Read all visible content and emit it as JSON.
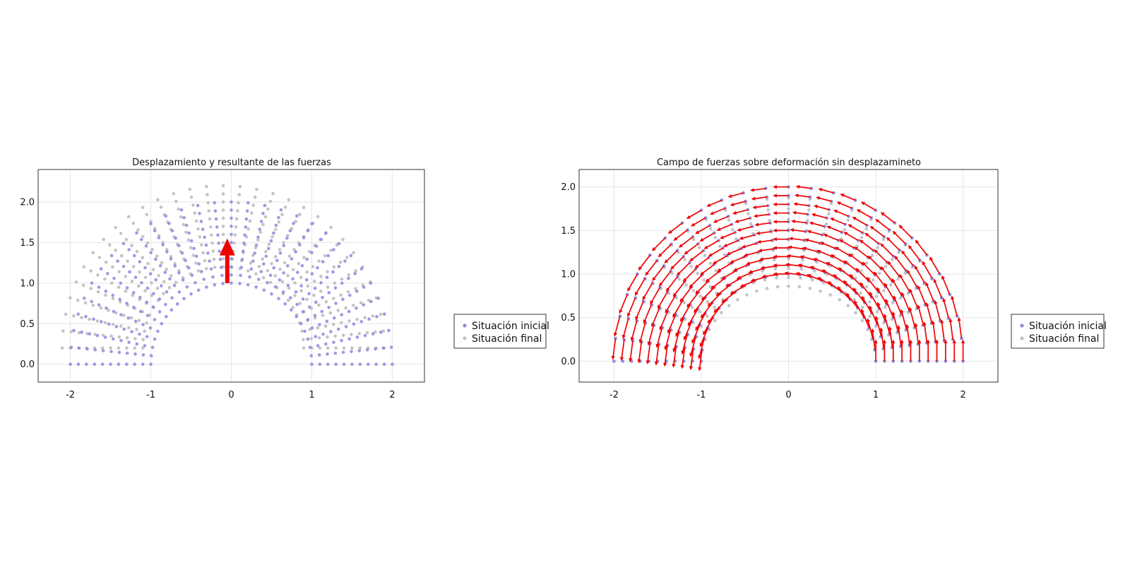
{
  "colors": {
    "initial": "#8a8ae0",
    "final": "#c4c4c4",
    "arrow": "#f00000",
    "frame": "#333333",
    "grid": "#e6e6e6"
  },
  "chart_data": [
    {
      "type": "scatter",
      "title": "Desplazamiento y resultante de las fuerzas",
      "xlabel": "",
      "ylabel": "",
      "xlim": [
        -2.4,
        2.4
      ],
      "ylim": [
        -0.22,
        2.4
      ],
      "xticks": [
        -2,
        -1,
        0,
        1,
        2
      ],
      "xtick_labels": [
        "-2",
        "-1",
        "0",
        "1",
        "2"
      ],
      "yticks": [
        0.0,
        0.5,
        1.0,
        1.5,
        2.0
      ],
      "ytick_labels": [
        "0.0",
        "0.5",
        "1.0",
        "1.5",
        "2.0"
      ],
      "grid": true,
      "legend_position": "right",
      "mesh": {
        "inner_radius": 1.0,
        "outer_radius": 2.0,
        "radial_nodes": 11,
        "angular_nodes": 31
      },
      "series": [
        {
          "name": "Situación inicial",
          "kind": "mesh-points",
          "offset": [
            0.0,
            0.0
          ],
          "color": "#8a8ae0"
        },
        {
          "name": "Situación final",
          "kind": "mesh-points",
          "offset": [
            -0.1,
            0.2
          ],
          "color": "#c4c4c4"
        }
      ],
      "resultant_force": {
        "from": [
          -0.05,
          1.0
        ],
        "to": [
          -0.05,
          1.55
        ],
        "color": "#f00000"
      }
    },
    {
      "type": "scatter",
      "title": "Campo de fuerzas sobre deformación sin desplazamineto",
      "xlabel": "",
      "ylabel": "",
      "xlim": [
        -2.4,
        2.4
      ],
      "ylim": [
        -0.24,
        2.2
      ],
      "xticks": [
        -2,
        -1,
        0,
        1,
        2
      ],
      "xtick_labels": [
        "-2",
        "-1",
        "0",
        "1",
        "2"
      ],
      "yticks": [
        0.0,
        0.5,
        1.0,
        1.5,
        2.0
      ],
      "ytick_labels": [
        "0.0",
        "0.5",
        "1.0",
        "1.5",
        "2.0"
      ],
      "grid": true,
      "legend_position": "right",
      "mesh": {
        "inner_radius": 1.0,
        "outer_radius": 2.0,
        "radial_nodes": 11,
        "angular_nodes": 25
      },
      "series": [
        {
          "name": "Situación inicial",
          "kind": "mesh-points",
          "color": "#8a8ae0"
        },
        {
          "name": "Situación final",
          "kind": "deformed-mesh-points",
          "color": "#c4c4c4"
        }
      ],
      "force_field": {
        "kind": "tangential",
        "color": "#f00000"
      }
    }
  ]
}
